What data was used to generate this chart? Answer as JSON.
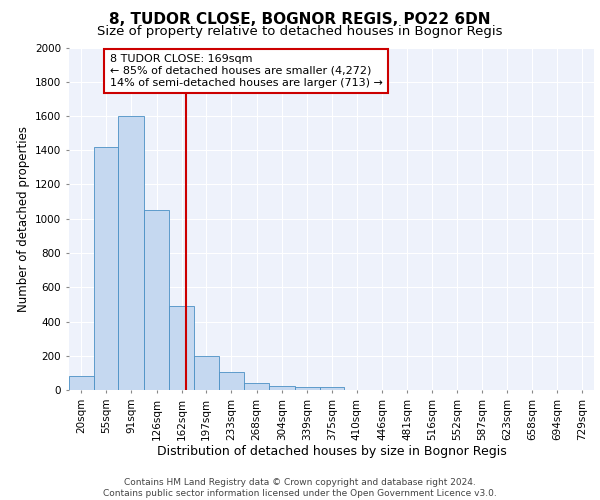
{
  "title1": "8, TUDOR CLOSE, BOGNOR REGIS, PO22 6DN",
  "title2": "Size of property relative to detached houses in Bognor Regis",
  "xlabel": "Distribution of detached houses by size in Bognor Regis",
  "ylabel": "Number of detached properties",
  "bin_labels": [
    "20sqm",
    "55sqm",
    "91sqm",
    "126sqm",
    "162sqm",
    "197sqm",
    "233sqm",
    "268sqm",
    "304sqm",
    "339sqm",
    "375sqm",
    "410sqm",
    "446sqm",
    "481sqm",
    "516sqm",
    "552sqm",
    "587sqm",
    "623sqm",
    "658sqm",
    "694sqm",
    "729sqm"
  ],
  "bin_edges": [
    2.5,
    37.5,
    72.5,
    108.5,
    144.5,
    179.5,
    214.5,
    250.5,
    286.5,
    322.5,
    357.5,
    392.5,
    428.5,
    464.5,
    499.5,
    535.5,
    570.5,
    605.5,
    641.5,
    676.5,
    711.5,
    746.5
  ],
  "heights": [
    80,
    1420,
    1600,
    1050,
    490,
    200,
    105,
    40,
    25,
    20,
    15,
    0,
    0,
    0,
    0,
    0,
    0,
    0,
    0,
    0,
    0
  ],
  "bar_color": "#c5d8f0",
  "bar_edge_color": "#4a90c4",
  "property_size": 169,
  "vline_color": "#cc0000",
  "ylim": [
    0,
    2000
  ],
  "annotation_text": "8 TUDOR CLOSE: 169sqm\n← 85% of detached houses are smaller (4,272)\n14% of semi-detached houses are larger (713) →",
  "annotation_box_color": "#ffffff",
  "annotation_box_edge": "#cc0000",
  "footer_text": "Contains HM Land Registry data © Crown copyright and database right 2024.\nContains public sector information licensed under the Open Government Licence v3.0.",
  "background_color": "#eef2fb",
  "grid_color": "#ffffff",
  "title1_fontsize": 11,
  "title2_fontsize": 9.5,
  "xlabel_fontsize": 9,
  "ylabel_fontsize": 8.5,
  "tick_fontsize": 7.5,
  "annotation_fontsize": 8,
  "footer_fontsize": 6.5
}
